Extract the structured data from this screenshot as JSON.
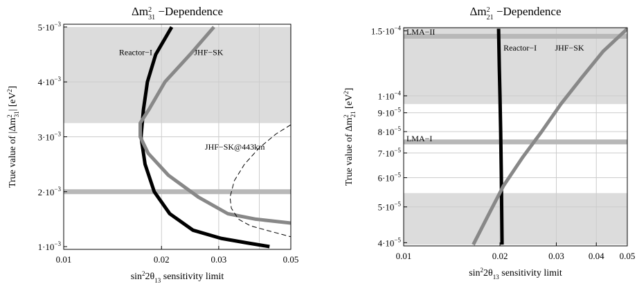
{
  "chart_data": [
    {
      "type": "line",
      "title_html": "Δm<tspan baseline-shift='super' font-size='10'>2</tspan><tspan dx='-5' baseline-shift='sub' font-size='10'>31</tspan> −Dependence",
      "xlabel_html": "sin<tspan baseline-shift='super' font-size='9'>2</tspan>2θ<tspan baseline-shift='sub' font-size='9'>13</tspan> sensitivity limit",
      "ylabel_html": "True value of |Δm<tspan baseline-shift='super' font-size='9'>2</tspan><tspan dx='-4' baseline-shift='sub' font-size='9'>31</tspan>| [eV<tspan baseline-shift='super' font-size='9'>2</tspan>]",
      "x_scale": "log",
      "xlim": [
        0.01,
        0.05
      ],
      "ylim": [
        0.00095,
        0.00505
      ],
      "x_ticks": [
        {
          "v": 0.01,
          "label": "0.01"
        },
        {
          "v": 0.02,
          "label": "0.02"
        },
        {
          "v": 0.03,
          "label": "0.03"
        },
        {
          "v": 0.05,
          "label": "0.05"
        }
      ],
      "x_grid": [
        0.02,
        0.03,
        0.04
      ],
      "y_ticks": [
        {
          "v": 0.001,
          "mant": "1·10",
          "exp": "−3"
        },
        {
          "v": 0.002,
          "mant": "2·10",
          "exp": "−3"
        },
        {
          "v": 0.003,
          "mant": "3·10",
          "exp": "−3"
        },
        {
          "v": 0.004,
          "mant": "4·10",
          "exp": "−3"
        },
        {
          "v": 0.005,
          "mant": "5·10",
          "exp": "−3"
        }
      ],
      "y_grid": [
        0.002,
        0.003,
        0.004
      ],
      "shaded_bands": [
        {
          "y0": 0.00325,
          "y1": 0.005
        }
      ],
      "horizontal_lines": [
        {
          "y": 0.002
        }
      ],
      "series": [
        {
          "name": "Reactor−I",
          "style": "thick-black",
          "points": [
            [
              0.0215,
              0.005
            ],
            [
              0.0192,
              0.0045
            ],
            [
              0.0181,
              0.004
            ],
            [
              0.0176,
              0.0035
            ],
            [
              0.0173,
              0.003
            ],
            [
              0.0178,
              0.0025
            ],
            [
              0.019,
              0.002
            ],
            [
              0.0212,
              0.0016
            ],
            [
              0.025,
              0.0013
            ],
            [
              0.0305,
              0.00115
            ],
            [
              0.0365,
              0.00107
            ],
            [
              0.043,
              0.001
            ]
          ]
        },
        {
          "name": "JHF−SK",
          "style": "thick-gray",
          "points": [
            [
              0.029,
              0.005
            ],
            [
              0.0245,
              0.0045
            ],
            [
              0.0205,
              0.004
            ],
            [
              0.0183,
              0.0035
            ],
            [
              0.0172,
              0.00325
            ],
            [
              0.0172,
              0.003
            ],
            [
              0.0182,
              0.0027
            ],
            [
              0.021,
              0.0023
            ],
            [
              0.026,
              0.0019
            ],
            [
              0.032,
              0.0016
            ],
            [
              0.039,
              0.0015
            ],
            [
              0.05,
              0.00143
            ]
          ]
        },
        {
          "name": "JHF−SK@443km",
          "style": "dashed",
          "points": [
            [
              0.05,
              0.00322
            ],
            [
              0.045,
              0.00305
            ],
            [
              0.04,
              0.0028
            ],
            [
              0.036,
              0.0025
            ],
            [
              0.0335,
              0.0022
            ],
            [
              0.0325,
              0.0019
            ],
            [
              0.0328,
              0.0017
            ],
            [
              0.0345,
              0.0015
            ],
            [
              0.0375,
              0.00138
            ],
            [
              0.042,
              0.0013
            ],
            [
              0.05,
              0.00118
            ]
          ]
        }
      ],
      "annotations": [
        {
          "text": "Reactor−I",
          "x": 0.0148,
          "y": 0.00454
        },
        {
          "text": "JHF−SK",
          "x": 0.0252,
          "y": 0.00454
        },
        {
          "text": "JHF−SK@443km",
          "x": 0.0272,
          "y": 0.00282
        }
      ]
    },
    {
      "type": "line",
      "title_html": "Δm<tspan baseline-shift='super' font-size='10'>2</tspan><tspan dx='-5' baseline-shift='sub' font-size='10'>21</tspan> −Dependence",
      "xlabel_html": "sin<tspan baseline-shift='super' font-size='9'>2</tspan>2θ<tspan baseline-shift='sub' font-size='9'>13</tspan> sensitivity limit",
      "ylabel_html": "True value of Δm<tspan baseline-shift='super' font-size='9'>2</tspan><tspan dx='-4' baseline-shift='sub' font-size='9'>21</tspan> [eV<tspan baseline-shift='super' font-size='9'>2</tspan>]",
      "x_scale": "log",
      "y_scale": "log",
      "xlim": [
        0.01,
        0.05
      ],
      "ylim": [
        3.92e-05,
        0.000153
      ],
      "x_ticks": [
        {
          "v": 0.01,
          "label": "0.01"
        },
        {
          "v": 0.02,
          "label": "0.02"
        },
        {
          "v": 0.03,
          "label": "0.03"
        },
        {
          "v": 0.04,
          "label": "0.04"
        },
        {
          "v": 0.05,
          "label": "0.05"
        }
      ],
      "x_grid": [
        0.02,
        0.03,
        0.04
      ],
      "y_ticks": [
        {
          "v": 4e-05,
          "mant": "4·10",
          "exp": "−5"
        },
        {
          "v": 5e-05,
          "mant": "5·10",
          "exp": "−5"
        },
        {
          "v": 6e-05,
          "mant": "6·10",
          "exp": "−5"
        },
        {
          "v": 7e-05,
          "mant": "7·10",
          "exp": "−5"
        },
        {
          "v": 8e-05,
          "mant": "8·10",
          "exp": "−5"
        },
        {
          "v": 9e-05,
          "mant": "9·10",
          "exp": "−5"
        },
        {
          "v": 0.0001,
          "mant": "1·10",
          "exp": "−4"
        },
        {
          "v": 0.00015,
          "mant": "1.5·10",
          "exp": "−4"
        }
      ],
      "y_grid": [
        5e-05,
        6e-05,
        7e-05,
        8e-05,
        9e-05,
        0.0001
      ],
      "shaded_bands": [
        {
          "y0": 3.95e-05,
          "y1": 5.45e-05
        },
        {
          "y0": 9.5e-05,
          "y1": 0.000153
        }
      ],
      "horizontal_lines": [
        {
          "y": 7.5e-05
        },
        {
          "y": 0.000145
        }
      ],
      "series": [
        {
          "name": "Reactor−I",
          "style": "thick-black",
          "points": [
            [
              0.0198,
              0.000152
            ],
            [
              0.0199,
              0.00012
            ],
            [
              0.02,
              0.0001
            ],
            [
              0.0201,
              8e-05
            ],
            [
              0.0202,
              6e-05
            ],
            [
              0.0203,
              3.95e-05
            ]
          ]
        },
        {
          "name": "JHF−SK",
          "style": "thick-gray",
          "points": [
            [
              0.0165,
              3.95e-05
            ],
            [
              0.0185,
              4.8e-05
            ],
            [
              0.0205,
              5.7e-05
            ],
            [
              0.0235,
              6.8e-05
            ],
            [
              0.027,
              8e-05
            ],
            [
              0.031,
              9.5e-05
            ],
            [
              0.036,
              0.000112
            ],
            [
              0.042,
              0.000132
            ],
            [
              0.05,
              0.000152
            ]
          ]
        }
      ],
      "annotations": [
        {
          "text": "Reactor−I",
          "x": 0.0205,
          "y": 0.000135
        },
        {
          "text": "JHF−SK",
          "x": 0.0297,
          "y": 0.000135
        },
        {
          "text": "LMA−II",
          "x": 0.0102,
          "y": 0.000149
        },
        {
          "text": "LMA−I",
          "x": 0.0102,
          "y": 7.66e-05
        }
      ]
    }
  ]
}
